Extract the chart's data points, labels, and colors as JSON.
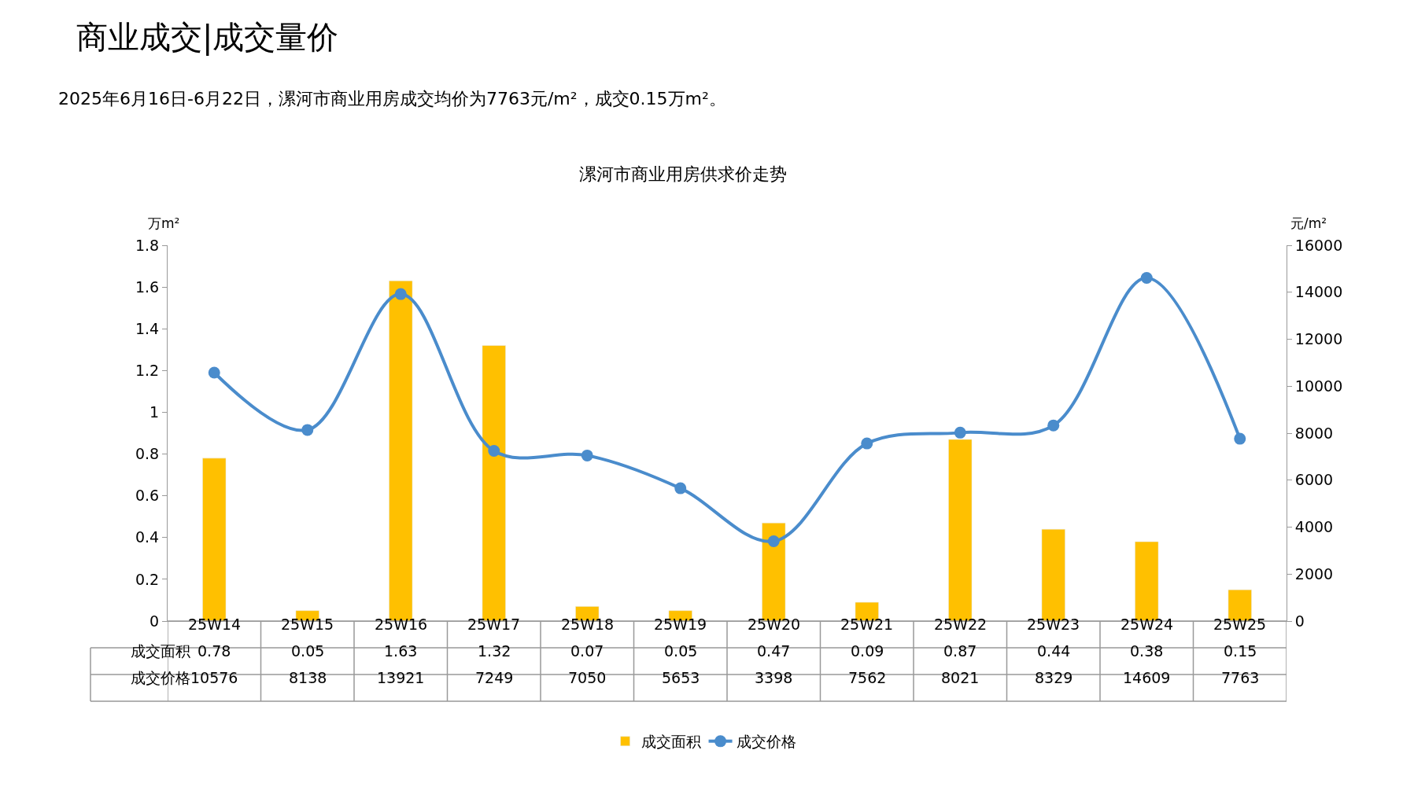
{
  "chart_data": {
    "type": "bar",
    "title": "漯河市商业用房供求价走势",
    "annotations": [
      "商业成交|成交量价",
      "2025年6月16日-6月22日，漯河市商业用房成交均价为7763元/m²，成交0.15万m²。"
    ],
    "ylabel": "万m²",
    "y2label": "元/m²",
    "categories": [
      "25W14",
      "25W15",
      "25W16",
      "25W17",
      "25W18",
      "25W19",
      "25W20",
      "25W21",
      "25W22",
      "25W23",
      "25W24",
      "25W25"
    ],
    "series": [
      {
        "name": "成交面积",
        "color": "#ffc000",
        "values": [
          0.78,
          0.05,
          1.63,
          1.32,
          0.07,
          0.05,
          0.47,
          0.09,
          0.87,
          0.44,
          0.38,
          0.15
        ]
      },
      {
        "name": "成交价格",
        "type": "line",
        "axis": "y2",
        "color": "#4a8ccc",
        "values": [
          10576,
          8138,
          13921,
          7249,
          7050,
          5653,
          3398,
          7562,
          8021,
          8329,
          14609,
          7763
        ]
      }
    ],
    "ylim": [
      0,
      1.8
    ],
    "yticks": [
      0,
      0.2,
      0.4,
      0.6,
      0.8,
      1,
      1.2,
      1.4,
      1.6,
      1.8
    ],
    "y2lim": [
      0,
      16000
    ],
    "y2ticks": [
      0,
      2000,
      4000,
      6000,
      8000,
      10000,
      12000,
      14000,
      16000
    ],
    "data_labels": true,
    "legend": "bottom",
    "marker": "circle",
    "line_style": "solid"
  }
}
